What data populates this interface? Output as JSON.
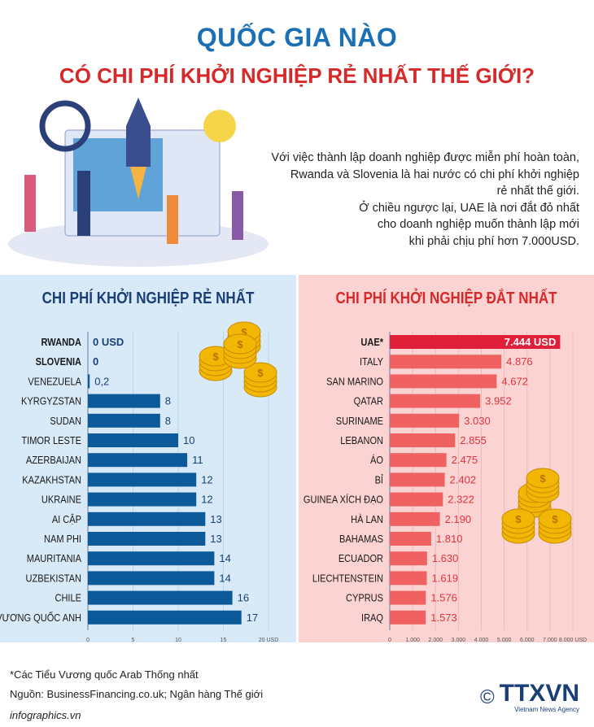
{
  "title_line1": "QUỐC GIA NÀO",
  "title_line2": "CÓ CHI PHÍ KHỞI NGHIỆP RẺ NHẤT THẾ GIỚI?",
  "intro": [
    "Với việc thành lập doanh nghiệp được miễn phí hoàn toàn,",
    "Rwanda và Slovenia là hai nước có chi phí khởi nghiệp",
    "rẻ nhất thế giới.",
    "Ở chiều ngược lại, UAE là nơi đắt đỏ nhất",
    "cho doanh nghiệp muốn thành lập mới",
    "khi phải chịu phí hơn 7.000USD."
  ],
  "chart_data": [
    {
      "type": "bar",
      "orientation": "horizontal",
      "title": "CHI PHÍ KHỞI NGHIỆP RẺ NHẤT",
      "color": "#0d5a9a",
      "categories": [
        "RWANDA",
        "SLOVENIA",
        "VENEZUELA",
        "KYRGYZSTAN",
        "SUDAN",
        "TIMOR LESTE",
        "AZERBAIJAN",
        "KAZAKHSTAN",
        "UKRAINE",
        "AI CẬP",
        "NAM PHI",
        "MAURITANIA",
        "UZBEKISTAN",
        "CHILE",
        "VƯƠNG QUỐC ANH"
      ],
      "values": [
        0,
        0,
        0.2,
        8,
        8,
        10,
        11,
        12,
        12,
        13,
        13,
        14,
        14,
        16,
        17
      ],
      "value_labels": [
        "0 USD",
        "0",
        "0,2",
        "8",
        "8",
        "10",
        "11",
        "12",
        "12",
        "13",
        "13",
        "14",
        "14",
        "16",
        "17"
      ],
      "xlim": [
        0,
        20
      ],
      "xticks": [
        "0",
        "5",
        "10",
        "15",
        "20 USD"
      ]
    },
    {
      "type": "bar",
      "orientation": "horizontal",
      "title": "CHI PHÍ KHỞI NGHIỆP ĐẮT NHẤT",
      "color": "#f06262",
      "categories": [
        "UAE*",
        "ITALY",
        "SAN MARINO",
        "QATAR",
        "SURINAME",
        "LEBANON",
        "ÁO",
        "BỈ",
        "GUINEA XÍCH ĐẠO",
        "HÀ LAN",
        "BAHAMAS",
        "ECUADOR",
        "LIECHTENSTEIN",
        "CYPRUS",
        "IRAQ"
      ],
      "values": [
        7444,
        4876,
        4672,
        3952,
        3030,
        2855,
        2475,
        2402,
        2322,
        2190,
        1810,
        1630,
        1619,
        1576,
        1573
      ],
      "value_labels": [
        "7.444 USD",
        "4.876",
        "4.672",
        "3.952",
        "3.030",
        "2.855",
        "2.475",
        "2.402",
        "2.322",
        "2.190",
        "1.810",
        "1.630",
        "1.619",
        "1.576",
        "1.573"
      ],
      "xlim": [
        0,
        8000
      ],
      "xticks": [
        "0",
        "1.000",
        "2.000",
        "3.000",
        "4.000",
        "5.000",
        "6.000",
        "7.000",
        "8.000 USD"
      ]
    }
  ],
  "footnote": "*Các Tiểu Vương quốc Arab Thống nhất",
  "source": "Nguồn: BusinessFinancing.co.uk; Ngân hàng Thế giới",
  "site": "infographics.vn",
  "logo": {
    "text": "TTXVN",
    "sub": "Vietnam News Agency",
    "mark": "©"
  }
}
